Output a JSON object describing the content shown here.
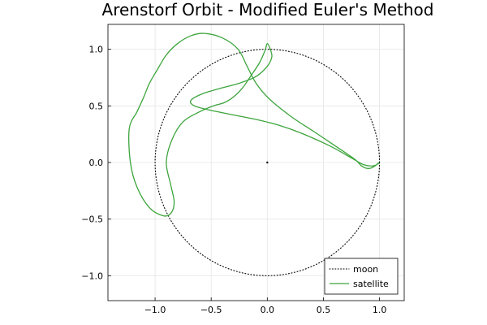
{
  "chart_data": {
    "type": "line",
    "title": "Arenstorf Orbit - Modified Euler's Method",
    "xlabel": "",
    "ylabel": "",
    "xlim": [
      -1.42,
      1.22
    ],
    "ylim": [
      -1.22,
      1.22
    ],
    "xticks": [
      -1.0,
      -0.5,
      0.0,
      0.5,
      1.0
    ],
    "xtick_labels": [
      "−1.0",
      "−0.5",
      "0.0",
      "0.5",
      "1.0"
    ],
    "yticks": [
      -1.0,
      -0.5,
      0.0,
      0.5,
      1.0
    ],
    "ytick_labels": [
      "−1.0",
      "−0.5",
      "0.0",
      "0.5",
      "1.0"
    ],
    "grid": true,
    "legend_position": "bottom-right",
    "series": [
      {
        "name": "moon",
        "style": "dotted",
        "color": "#000000",
        "shape": "circle",
        "center": [
          0,
          0
        ],
        "radius": 1.0
      },
      {
        "name": "satellite",
        "style": "solid",
        "color": "#3da53d",
        "x": [
          0.994,
          0.96,
          0.92,
          0.88,
          0.84,
          0.79,
          0.72,
          0.6,
          0.42,
          0.22,
          0.02,
          -0.1,
          -0.18,
          -0.26,
          -0.4,
          -0.56,
          -0.68,
          -0.8,
          -0.9,
          -0.98,
          -1.05,
          -1.1,
          -1.16,
          -1.23,
          -1.22,
          -1.16,
          -1.05,
          -0.93,
          -0.86,
          -0.83,
          -0.86,
          -0.9,
          -0.85,
          -0.75,
          -0.6,
          -0.48,
          -0.38,
          -0.3,
          -0.22,
          -0.15,
          -0.07,
          -0.02,
          0.0,
          0.03,
          0.04,
          0.0,
          -0.1,
          -0.25,
          -0.4,
          -0.57,
          -0.68,
          -0.65,
          -0.5,
          -0.3,
          -0.1,
          0.1,
          0.3,
          0.55,
          0.75,
          0.86,
          0.94,
          0.99,
          0.994
        ],
        "y": [
          0.0,
          -0.03,
          -0.05,
          -0.05,
          -0.03,
          0.02,
          0.07,
          0.15,
          0.27,
          0.4,
          0.56,
          0.7,
          0.85,
          1.0,
          1.1,
          1.14,
          1.12,
          1.05,
          0.95,
          0.82,
          0.7,
          0.58,
          0.45,
          0.3,
          0.0,
          -0.22,
          -0.4,
          -0.47,
          -0.45,
          -0.35,
          -0.2,
          0.0,
          0.2,
          0.36,
          0.45,
          0.5,
          0.53,
          0.58,
          0.66,
          0.76,
          0.88,
          0.99,
          1.05,
          0.99,
          0.93,
          0.85,
          0.76,
          0.7,
          0.66,
          0.61,
          0.55,
          0.5,
          0.46,
          0.42,
          0.38,
          0.33,
          0.26,
          0.15,
          0.04,
          -0.02,
          -0.03,
          -0.01,
          0.0
        ]
      }
    ]
  }
}
